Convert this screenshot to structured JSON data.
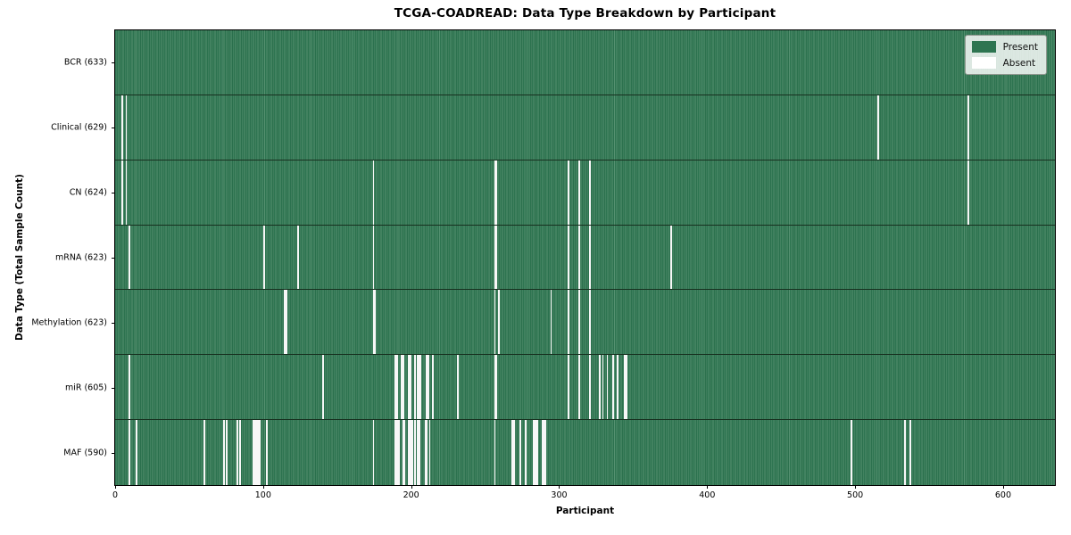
{
  "chart_data": {
    "type": "heatmap",
    "title": "TCGA-COADREAD: Data Type Breakdown by Participant",
    "xlabel": "Participant",
    "ylabel": "Data Type (Total Sample Count)",
    "legend_labels": [
      "Present",
      "Absent"
    ],
    "legend_position": "upper right",
    "present_color": "#2e7551",
    "absent_color": "#f7f7f7",
    "grid": false,
    "total_participants": 633,
    "xlim": [
      0,
      635
    ],
    "x_ticks": [
      0,
      100,
      200,
      300,
      400,
      500,
      600
    ],
    "rows": [
      {
        "name": "BCR",
        "label": "BCR (633)",
        "sample_count": 633,
        "absent_participants": []
      },
      {
        "name": "Clinical",
        "label": "Clinical (629)",
        "sample_count": 629,
        "absent_participants": [
          4,
          7,
          515,
          576
        ]
      },
      {
        "name": "CN",
        "label": "CN (624)",
        "sample_count": 624,
        "absent_participants": [
          4,
          7,
          174,
          256,
          257,
          306,
          313,
          320,
          576
        ]
      },
      {
        "name": "mRNA",
        "label": "mRNA (623)",
        "sample_count": 623,
        "absent_participants": [
          9,
          100,
          123,
          174,
          256,
          257,
          306,
          313,
          320,
          375
        ]
      },
      {
        "name": "Methylation",
        "label": "Methylation (623)",
        "sample_count": 623,
        "absent_participants": [
          114,
          115,
          174,
          175,
          256,
          259,
          294,
          306,
          313,
          320
        ]
      },
      {
        "name": "miR",
        "label": "miR (605)",
        "sample_count": 605,
        "absent_participants": [
          9,
          140,
          189,
          190,
          193,
          194,
          198,
          199,
          202,
          204,
          205,
          206,
          210,
          211,
          214,
          231,
          256,
          257,
          306,
          313,
          320,
          327,
          329,
          332,
          336,
          339,
          344,
          345
        ]
      },
      {
        "name": "MAF",
        "label": "MAF (590)",
        "sample_count": 590,
        "absent_participants": [
          9,
          14,
          60,
          73,
          75,
          82,
          84,
          93,
          94,
          95,
          96,
          97,
          102,
          174,
          189,
          190,
          191,
          194,
          195,
          198,
          199,
          200,
          202,
          204,
          205,
          209,
          210,
          212,
          256,
          268,
          269,
          273,
          277,
          282,
          283,
          284,
          285,
          288,
          289,
          290,
          497,
          533,
          537
        ]
      }
    ]
  }
}
